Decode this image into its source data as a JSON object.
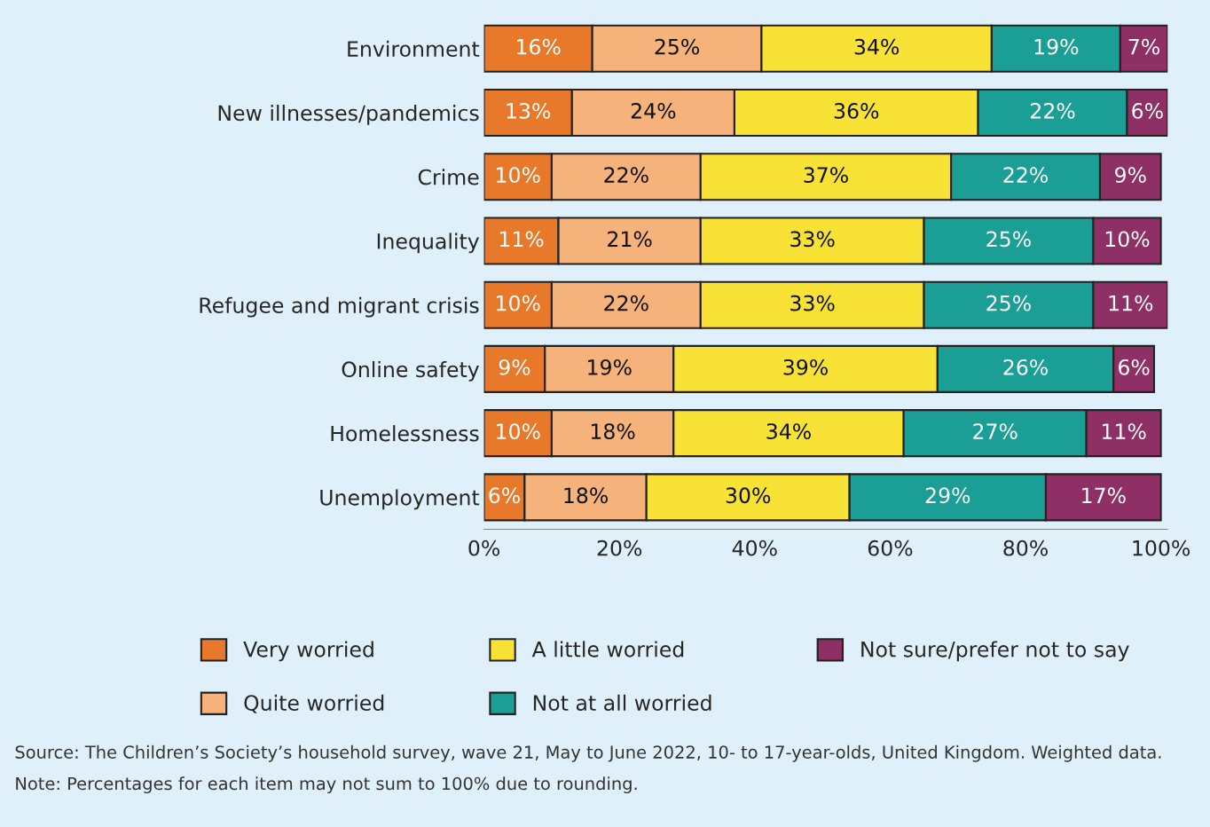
{
  "chart_data": {
    "type": "bar",
    "orientation": "horizontal",
    "stacked": true,
    "categories": [
      "Environment",
      "New illnesses/pandemics",
      "Crime",
      "Inequality",
      "Refugee and migrant crisis",
      "Online safety",
      "Homelessness",
      "Unemployment"
    ],
    "series": [
      {
        "name": "Very worried",
        "color": "#e8782a",
        "values": [
          16,
          13,
          10,
          11,
          10,
          9,
          10,
          6
        ],
        "value_labels": [
          "16%",
          "13%",
          "10%",
          "11%",
          "10%",
          "9%",
          "10%",
          "6%"
        ]
      },
      {
        "name": "Quite worried",
        "color": "#f5b27a",
        "values": [
          25,
          24,
          22,
          21,
          22,
          19,
          18,
          18
        ],
        "value_labels": [
          "25%",
          "24%",
          "22%",
          "21%",
          "22%",
          "19%",
          "18%",
          "18%"
        ]
      },
      {
        "name": "A little worried",
        "color": "#f7e235",
        "values": [
          34,
          36,
          37,
          33,
          33,
          39,
          34,
          30
        ],
        "value_labels": [
          "34%",
          "36%",
          "37%",
          "33%",
          "33%",
          "39%",
          "34%",
          "30%"
        ]
      },
      {
        "name": "Not at all worried",
        "color": "#1a9e96",
        "values": [
          19,
          22,
          22,
          25,
          25,
          26,
          27,
          29
        ],
        "value_labels": [
          "19%",
          "22%",
          "22%",
          "25%",
          "25%",
          "26%",
          "27%",
          "29%"
        ]
      },
      {
        "name": "Not sure/prefer not to say",
        "color": "#8e2f66",
        "values": [
          7,
          6,
          9,
          10,
          11,
          6,
          11,
          17
        ],
        "value_labels": [
          "7%",
          "6%",
          "9%",
          "10%",
          "11%",
          "6%",
          "11%",
          "17%"
        ]
      }
    ],
    "xlim": [
      0,
      101
    ],
    "xticks": [
      {
        "value": 0,
        "label": "0%"
      },
      {
        "value": 20,
        "label": "20%"
      },
      {
        "value": 40,
        "label": "40%"
      },
      {
        "value": 60,
        "label": "60%"
      },
      {
        "value": 80,
        "label": "80%"
      },
      {
        "value": 100,
        "label": "100%"
      }
    ],
    "grid": false,
    "legend": "bottom",
    "annotations": [
      "Source: The Children’s Society’s household survey, wave 21, May to June 2022, 10- to 17-year-olds, United Kingdom. Weighted data.",
      "Note: Percentages for each item may not sum to 100% due to rounding."
    ]
  }
}
